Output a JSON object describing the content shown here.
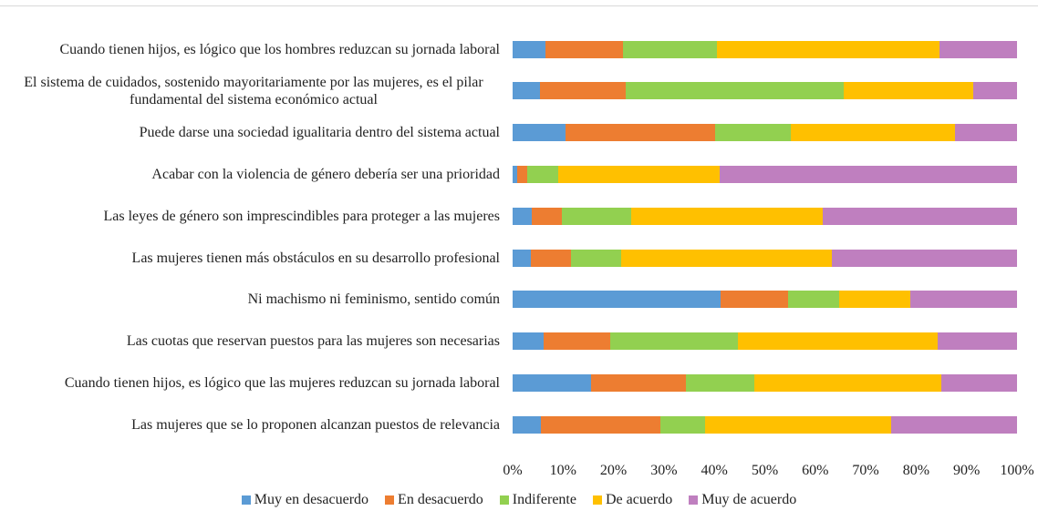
{
  "chart_data": {
    "type": "bar",
    "orientation": "horizontal",
    "stacked": true,
    "categories": [
      "Cuando tienen hijos, es lógico que los hombres reduzcan su jornada laboral",
      "El sistema de cuidados, sostenido mayoritariamente por las mujeres, es el pilar fundamental del sistema económico actual",
      "Puede darse una sociedad igualitaria dentro del sistema actual",
      "Acabar con la violencia de género debería ser una prioridad",
      "Las leyes de género son imprescindibles para proteger a las mujeres",
      "Las mujeres tienen más obstáculos en su desarrollo profesional",
      "Ni machismo ni feminismo, sentido común",
      "Las cuotas que reservan puestos para las mujeres son necesarias",
      "Cuando tienen hijos, es lógico que las mujeres reduzcan su jornada laboral",
      "Las mujeres que se lo proponen alcanzan puestos de relevancia"
    ],
    "series": [
      {
        "name": "Muy en desacuerdo",
        "color": "#5b9bd5",
        "values": [
          6.5,
          5.4,
          10.5,
          0.9,
          3.8,
          3.6,
          41.2,
          6.1,
          15.6,
          5.6
        ]
      },
      {
        "name": "En desacuerdo",
        "color": "#ed7d31",
        "values": [
          15.4,
          17.0,
          29.6,
          2.0,
          6.0,
          8.0,
          13.4,
          13.2,
          18.8,
          23.7
        ]
      },
      {
        "name": "Indiferente",
        "color": "#92d050",
        "values": [
          18.6,
          43.2,
          15.1,
          6.1,
          13.7,
          9.9,
          10.1,
          25.4,
          13.5,
          8.9
        ]
      },
      {
        "name": "De acuerdo",
        "color": "#ffc000",
        "values": [
          44.1,
          25.7,
          32.5,
          32.0,
          38.0,
          41.8,
          14.1,
          39.6,
          37.1,
          36.8
        ]
      },
      {
        "name": "Muy de acuerdo",
        "color": "#bf7fbf",
        "values": [
          15.4,
          8.7,
          12.3,
          59.0,
          38.5,
          36.7,
          21.2,
          15.7,
          15.0,
          25.0
        ]
      }
    ],
    "xlim": [
      0,
      100
    ],
    "xticks": [
      {
        "value": 0,
        "label": "0%"
      },
      {
        "value": 10,
        "label": "10%"
      },
      {
        "value": 20,
        "label": "20%"
      },
      {
        "value": 30,
        "label": "30%"
      },
      {
        "value": 40,
        "label": "40%"
      },
      {
        "value": 50,
        "label": "50%"
      },
      {
        "value": 60,
        "label": "60%"
      },
      {
        "value": 70,
        "label": "70%"
      },
      {
        "value": 80,
        "label": "80%"
      },
      {
        "value": 90,
        "label": "90%"
      },
      {
        "value": 100,
        "label": "100%"
      }
    ],
    "legend": "bottom"
  }
}
